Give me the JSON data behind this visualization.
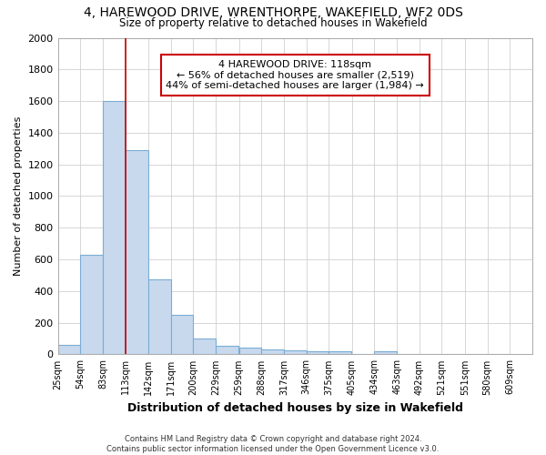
{
  "title": "4, HAREWOOD DRIVE, WRENTHORPE, WAKEFIELD, WF2 0DS",
  "subtitle": "Size of property relative to detached houses in Wakefield",
  "xlabel": "Distribution of detached houses by size in Wakefield",
  "ylabel": "Number of detached properties",
  "bar_left_edges": [
    25,
    54,
    83,
    113,
    142,
    171,
    200,
    229,
    259,
    288,
    317,
    346,
    375,
    405,
    434,
    463,
    492,
    521,
    551,
    580
  ],
  "bar_widths": [
    29,
    29,
    29,
    29,
    29,
    29,
    29,
    29,
    29,
    29,
    29,
    29,
    29,
    29,
    29,
    29,
    29,
    29,
    29,
    29
  ],
  "bar_heights": [
    60,
    630,
    1600,
    1290,
    475,
    248,
    102,
    55,
    40,
    30,
    25,
    18,
    20,
    0,
    20,
    0,
    0,
    0,
    0,
    0
  ],
  "bar_color": "#c8d9ee",
  "bar_edge_color": "#7aadd4",
  "tick_labels": [
    "25sqm",
    "54sqm",
    "83sqm",
    "113sqm",
    "142sqm",
    "171sqm",
    "200sqm",
    "229sqm",
    "259sqm",
    "288sqm",
    "317sqm",
    "346sqm",
    "375sqm",
    "405sqm",
    "434sqm",
    "463sqm",
    "492sqm",
    "521sqm",
    "551sqm",
    "580sqm",
    "609sqm"
  ],
  "property_line_x": 113,
  "property_line_color": "#cc0000",
  "annotation_line1": "4 HAREWOOD DRIVE: 118sqm",
  "annotation_line2": "← 56% of detached houses are smaller (2,519)",
  "annotation_line3": "44% of semi-detached houses are larger (1,984) →",
  "annotation_box_color": "#cc0000",
  "ylim": [
    0,
    2000
  ],
  "yticks": [
    0,
    200,
    400,
    600,
    800,
    1000,
    1200,
    1400,
    1600,
    1800,
    2000
  ],
  "grid_color": "#d0d0d0",
  "bg_color": "#ffffff",
  "footnote": "Contains HM Land Registry data © Crown copyright and database right 2024.\nContains public sector information licensed under the Open Government Licence v3.0."
}
